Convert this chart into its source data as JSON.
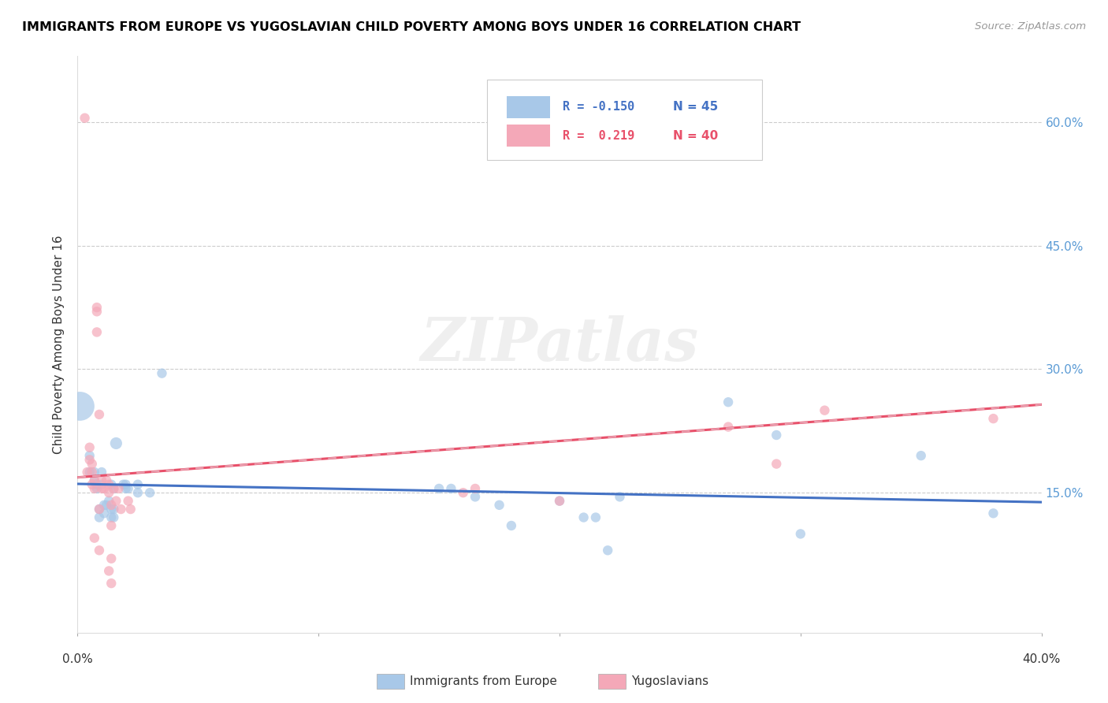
{
  "title": "IMMIGRANTS FROM EUROPE VS YUGOSLAVIAN CHILD POVERTY AMONG BOYS UNDER 16 CORRELATION CHART",
  "source": "Source: ZipAtlas.com",
  "ylabel": "Child Poverty Among Boys Under 16",
  "xlim": [
    0.0,
    0.4
  ],
  "ylim": [
    -0.02,
    0.68
  ],
  "yticks": [
    0.15,
    0.3,
    0.45,
    0.6
  ],
  "ytick_labels": [
    "15.0%",
    "30.0%",
    "45.0%",
    "60.0%"
  ],
  "blue_color": "#a8c8e8",
  "pink_color": "#f4a8b8",
  "blue_line_color": "#4472c4",
  "pink_line_color": "#e8506a",
  "pink_dash_color": "#e8a0b0",
  "blue_R": -0.15,
  "pink_R": 0.219,
  "watermark": "ZIPatlas",
  "blue_points": [
    [
      0.001,
      0.255
    ],
    [
      0.005,
      0.195
    ],
    [
      0.005,
      0.175
    ],
    [
      0.007,
      0.175
    ],
    [
      0.007,
      0.165
    ],
    [
      0.008,
      0.16
    ],
    [
      0.008,
      0.155
    ],
    [
      0.009,
      0.13
    ],
    [
      0.009,
      0.12
    ],
    [
      0.01,
      0.175
    ],
    [
      0.01,
      0.16
    ],
    [
      0.011,
      0.135
    ],
    [
      0.011,
      0.125
    ],
    [
      0.012,
      0.135
    ],
    [
      0.013,
      0.14
    ],
    [
      0.014,
      0.16
    ],
    [
      0.014,
      0.13
    ],
    [
      0.014,
      0.12
    ],
    [
      0.015,
      0.155
    ],
    [
      0.015,
      0.13
    ],
    [
      0.015,
      0.12
    ],
    [
      0.016,
      0.21
    ],
    [
      0.019,
      0.16
    ],
    [
      0.02,
      0.16
    ],
    [
      0.02,
      0.155
    ],
    [
      0.021,
      0.155
    ],
    [
      0.025,
      0.16
    ],
    [
      0.025,
      0.15
    ],
    [
      0.03,
      0.15
    ],
    [
      0.035,
      0.295
    ],
    [
      0.15,
      0.155
    ],
    [
      0.155,
      0.155
    ],
    [
      0.165,
      0.145
    ],
    [
      0.175,
      0.135
    ],
    [
      0.18,
      0.11
    ],
    [
      0.2,
      0.14
    ],
    [
      0.21,
      0.12
    ],
    [
      0.215,
      0.12
    ],
    [
      0.22,
      0.08
    ],
    [
      0.225,
      0.145
    ],
    [
      0.27,
      0.26
    ],
    [
      0.29,
      0.22
    ],
    [
      0.3,
      0.1
    ],
    [
      0.35,
      0.195
    ],
    [
      0.38,
      0.125
    ]
  ],
  "pink_points": [
    [
      0.003,
      0.605
    ],
    [
      0.004,
      0.175
    ],
    [
      0.005,
      0.205
    ],
    [
      0.005,
      0.19
    ],
    [
      0.006,
      0.185
    ],
    [
      0.006,
      0.175
    ],
    [
      0.006,
      0.16
    ],
    [
      0.007,
      0.165
    ],
    [
      0.007,
      0.155
    ],
    [
      0.007,
      0.095
    ],
    [
      0.008,
      0.375
    ],
    [
      0.008,
      0.37
    ],
    [
      0.008,
      0.345
    ],
    [
      0.009,
      0.245
    ],
    [
      0.009,
      0.13
    ],
    [
      0.009,
      0.08
    ],
    [
      0.01,
      0.165
    ],
    [
      0.01,
      0.155
    ],
    [
      0.011,
      0.155
    ],
    [
      0.012,
      0.165
    ],
    [
      0.013,
      0.16
    ],
    [
      0.013,
      0.15
    ],
    [
      0.013,
      0.055
    ],
    [
      0.014,
      0.135
    ],
    [
      0.014,
      0.11
    ],
    [
      0.014,
      0.07
    ],
    [
      0.014,
      0.04
    ],
    [
      0.015,
      0.155
    ],
    [
      0.016,
      0.14
    ],
    [
      0.017,
      0.155
    ],
    [
      0.018,
      0.13
    ],
    [
      0.021,
      0.14
    ],
    [
      0.022,
      0.13
    ],
    [
      0.16,
      0.15
    ],
    [
      0.165,
      0.155
    ],
    [
      0.2,
      0.14
    ],
    [
      0.27,
      0.23
    ],
    [
      0.29,
      0.185
    ],
    [
      0.31,
      0.25
    ],
    [
      0.38,
      0.24
    ]
  ],
  "blue_sizes": [
    700,
    80,
    80,
    80,
    80,
    80,
    80,
    80,
    80,
    80,
    80,
    80,
    80,
    80,
    80,
    80,
    80,
    80,
    80,
    80,
    80,
    120,
    80,
    80,
    80,
    80,
    80,
    80,
    80,
    80,
    80,
    80,
    80,
    80,
    80,
    80,
    80,
    80,
    80,
    80,
    80,
    80,
    80,
    80,
    80
  ],
  "pink_sizes": [
    80,
    80,
    80,
    80,
    80,
    80,
    80,
    80,
    80,
    80,
    80,
    80,
    80,
    80,
    80,
    80,
    80,
    80,
    80,
    80,
    80,
    80,
    80,
    80,
    80,
    80,
    80,
    80,
    80,
    80,
    80,
    80,
    80,
    80,
    80,
    80,
    80,
    80,
    80,
    80
  ],
  "legend_R_blue": "R = -0.150",
  "legend_N_blue": "N = 45",
  "legend_R_pink": "R =  0.219",
  "legend_N_pink": "N = 40"
}
